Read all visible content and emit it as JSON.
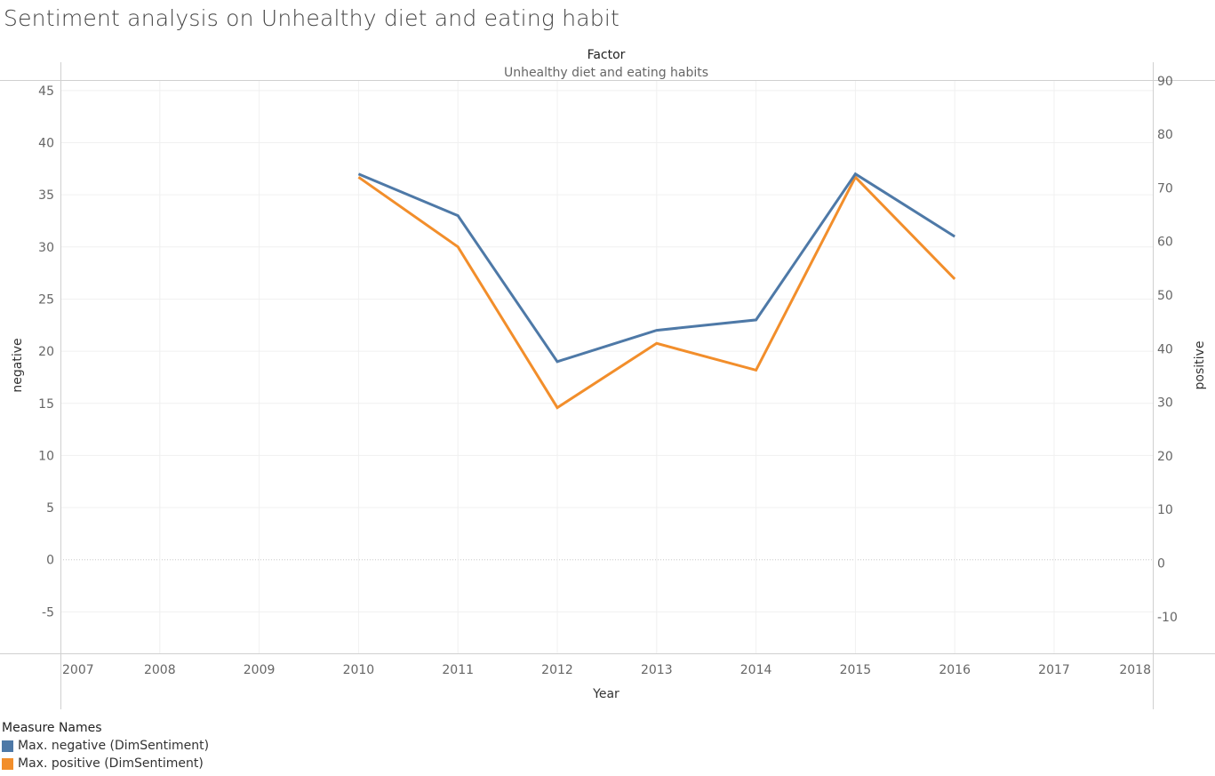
{
  "title": "Sentiment analysis on Unhealthy diet and eating habit",
  "colors": {
    "negative": "#4e79a7",
    "positive": "#f28e2b"
  },
  "chart_data": {
    "type": "line",
    "header_title": "Factor",
    "header_subtitle": "Unhealthy diet and eating habits",
    "xlabel": "Year",
    "ylabel_left": "negative",
    "ylabel_right": "positive",
    "x_ticks": [
      "2007",
      "2008",
      "2009",
      "2010",
      "2011",
      "2012",
      "2013",
      "2014",
      "2015",
      "2016",
      "2017",
      "2018"
    ],
    "y_left_ticks": [
      45,
      40,
      35,
      30,
      25,
      20,
      15,
      10,
      5,
      0,
      -5
    ],
    "y_right_ticks": [
      90,
      80,
      70,
      60,
      50,
      40,
      30,
      20,
      10,
      0,
      -10
    ],
    "ylim_left": [
      -9,
      46
    ],
    "ylim_right": [
      -17,
      92
    ],
    "xlim": [
      2007,
      2018
    ],
    "grid": true,
    "legend_title": "Measure Names",
    "legend_position": "bottom-left",
    "series": [
      {
        "name": "Max. negative (DimSentiment)",
        "axis": "left",
        "color": "#4e79a7",
        "x": [
          2010,
          2011,
          2012,
          2013,
          2014,
          2015,
          2016
        ],
        "values": [
          37,
          33,
          19,
          22,
          23,
          37,
          31
        ]
      },
      {
        "name": "Max. positive (DimSentiment)",
        "axis": "right",
        "color": "#f28e2b",
        "x": [
          2010,
          2011,
          2012,
          2013,
          2014,
          2015,
          2016
        ],
        "values": [
          72,
          59,
          29,
          41,
          36,
          72,
          53
        ]
      }
    ]
  }
}
